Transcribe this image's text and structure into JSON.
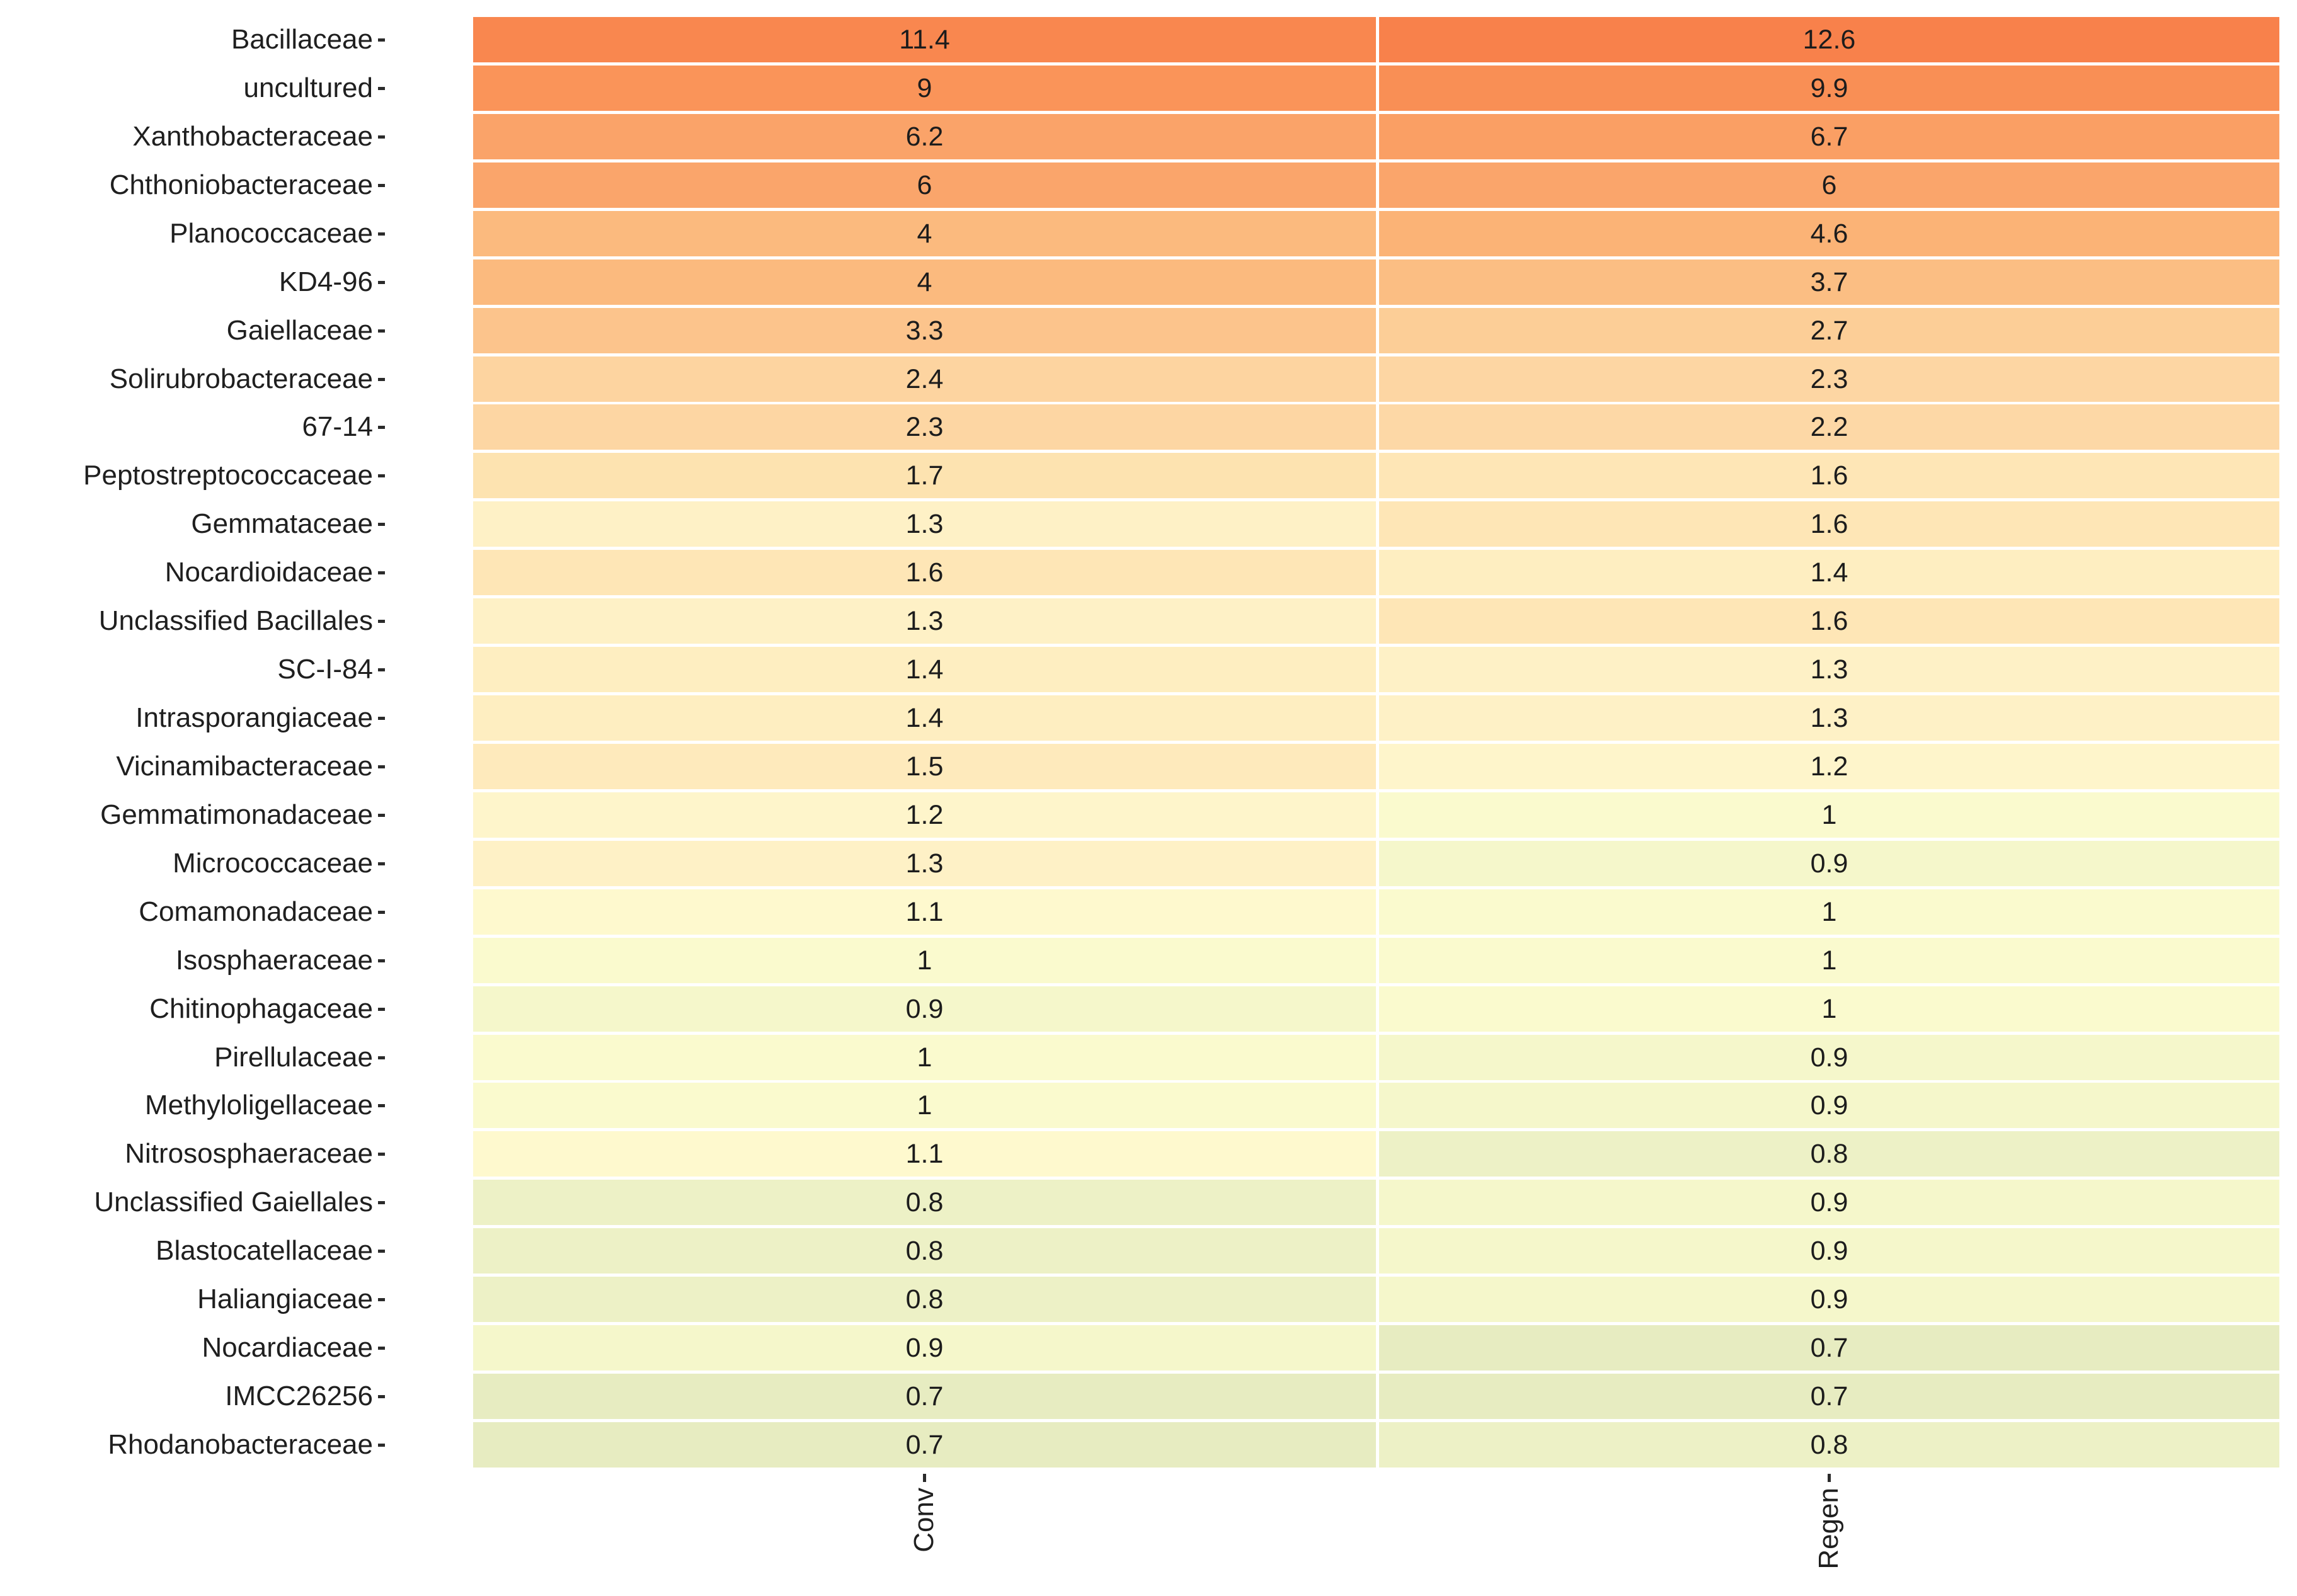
{
  "chart_data": {
    "type": "heatmap",
    "title": "",
    "columns": [
      "Conv",
      "Regen"
    ],
    "rows": [
      "Bacillaceae",
      "uncultured",
      "Xanthobacteraceae",
      "Chthoniobacteraceae",
      "Planococcaceae",
      "KD4-96",
      "Gaiellaceae",
      "Solirubrobacteraceae",
      "67-14",
      "Peptostreptococcaceae",
      "Gemmataceae",
      "Nocardioidaceae",
      "Unclassified Bacillales",
      "SC-I-84",
      "Intrasporangiaceae",
      "Vicinamibacteraceae",
      "Gemmatimonadaceae",
      "Micrococcaceae",
      "Comamonadaceae",
      "Isosphaeraceae",
      "Chitinophagaceae",
      "Pirellulaceae",
      "Methyloligellaceae",
      "Nitrososphaeraceae",
      "Unclassified Gaiellales",
      "Blastocatellaceae",
      "Haliangiaceae",
      "Nocardiaceae",
      "IMCC26256",
      "Rhodanobacteraceae"
    ],
    "series": [
      {
        "name": "Conv",
        "values": [
          11.4,
          9,
          6.2,
          6,
          4,
          4,
          3.3,
          2.4,
          2.3,
          1.7,
          1.3,
          1.6,
          1.3,
          1.4,
          1.4,
          1.5,
          1.2,
          1.3,
          1.1,
          1,
          0.9,
          1,
          1,
          1.1,
          0.8,
          0.8,
          0.8,
          0.9,
          0.7,
          0.7
        ]
      },
      {
        "name": "Regen",
        "values": [
          12.6,
          9.9,
          6.7,
          6,
          4.6,
          3.7,
          2.7,
          2.3,
          2.2,
          1.6,
          1.6,
          1.4,
          1.6,
          1.3,
          1.3,
          1.2,
          1,
          0.9,
          1,
          1,
          1,
          0.9,
          0.9,
          0.8,
          0.9,
          0.9,
          0.9,
          0.7,
          0.7,
          0.8
        ]
      }
    ],
    "value_range": [
      0.7,
      12.6
    ],
    "legend": "none",
    "grid": "off",
    "color_scale": {
      "description": "orange (high) through pale yellow to light yellow-green (low)",
      "anchors": [
        {
          "v": 0.7,
          "c": "#E7ECC1"
        },
        {
          "v": 0.8,
          "c": "#EDF1C6"
        },
        {
          "v": 0.9,
          "c": "#F5F7CB"
        },
        {
          "v": 1.0,
          "c": "#FAFACE"
        },
        {
          "v": 1.1,
          "c": "#FEF9CE"
        },
        {
          "v": 1.2,
          "c": "#FEF5CB"
        },
        {
          "v": 1.3,
          "c": "#FEF1C6"
        },
        {
          "v": 1.4,
          "c": "#FEEEC1"
        },
        {
          "v": 1.5,
          "c": "#FEEABC"
        },
        {
          "v": 1.6,
          "c": "#FEE6B6"
        },
        {
          "v": 1.7,
          "c": "#FDE3B0"
        },
        {
          "v": 2.2,
          "c": "#FDD8A6"
        },
        {
          "v": 2.3,
          "c": "#FDD6A3"
        },
        {
          "v": 2.4,
          "c": "#FDD4A0"
        },
        {
          "v": 2.7,
          "c": "#FCCE97"
        },
        {
          "v": 3.3,
          "c": "#FCC48C"
        },
        {
          "v": 3.7,
          "c": "#FBBE83"
        },
        {
          "v": 4.0,
          "c": "#FBBA7E"
        },
        {
          "v": 4.6,
          "c": "#FBB376"
        },
        {
          "v": 6.0,
          "c": "#FAA56B"
        },
        {
          "v": 6.2,
          "c": "#FAA369"
        },
        {
          "v": 6.7,
          "c": "#FA9F64"
        },
        {
          "v": 9.0,
          "c": "#FA9459"
        },
        {
          "v": 9.9,
          "c": "#F98F55"
        },
        {
          "v": 11.4,
          "c": "#F9874F"
        },
        {
          "v": 12.6,
          "c": "#F8814B"
        }
      ]
    },
    "text_color": "#1c1c1c",
    "tick_color": "#2b2b2b",
    "background_color": "#FFFFFF",
    "separator_color": "#FFFFFF"
  }
}
